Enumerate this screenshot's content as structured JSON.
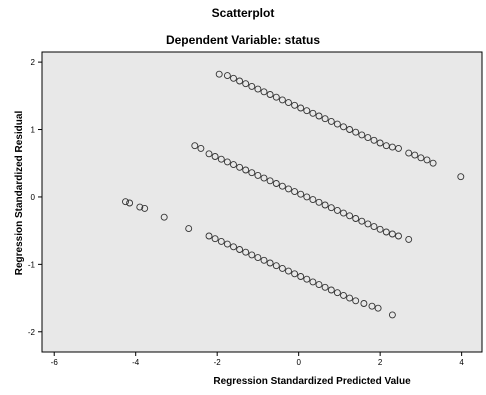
{
  "chart_data": {
    "type": "scatter",
    "title": "Scatterplot",
    "subtitle": "Dependent Variable: status",
    "xlabel": "Regression Standardized Predicted Value",
    "ylabel": "Regression Standardized Residual",
    "xlim": [
      -6.3,
      4.5
    ],
    "ylim": [
      -2.3,
      2.15
    ],
    "xticks": [
      -6,
      -4,
      -2,
      0,
      2,
      4
    ],
    "yticks": [
      2,
      1,
      0,
      -1,
      -2
    ],
    "grid": false,
    "legend": "none",
    "colors": {
      "plot_background": "#e8e8e8",
      "marker_stroke": "#333333",
      "axis": "#000000"
    },
    "series": [
      {
        "points": [
          [
            -1.95,
            1.82
          ],
          [
            -1.75,
            1.8
          ],
          [
            -1.6,
            1.76
          ],
          [
            -1.45,
            1.72
          ],
          [
            -1.3,
            1.68
          ],
          [
            -1.15,
            1.64
          ],
          [
            -1.0,
            1.6
          ],
          [
            -0.85,
            1.56
          ],
          [
            -0.7,
            1.52
          ],
          [
            -0.55,
            1.48
          ],
          [
            -0.4,
            1.44
          ],
          [
            -0.25,
            1.4
          ],
          [
            -0.1,
            1.36
          ],
          [
            0.05,
            1.32
          ],
          [
            0.2,
            1.28
          ],
          [
            0.35,
            1.24
          ],
          [
            0.5,
            1.2
          ],
          [
            0.65,
            1.16
          ],
          [
            0.8,
            1.12
          ],
          [
            0.95,
            1.08
          ],
          [
            1.1,
            1.04
          ],
          [
            1.25,
            1.0
          ],
          [
            1.4,
            0.96
          ],
          [
            1.55,
            0.92
          ],
          [
            1.7,
            0.88
          ],
          [
            1.85,
            0.84
          ],
          [
            2.0,
            0.8
          ],
          [
            2.15,
            0.76
          ],
          [
            2.3,
            0.74
          ],
          [
            2.45,
            0.72
          ],
          [
            2.7,
            0.65
          ],
          [
            2.85,
            0.62
          ],
          [
            3.0,
            0.58
          ],
          [
            3.15,
            0.55
          ],
          [
            3.3,
            0.5
          ],
          [
            3.98,
            0.3
          ],
          [
            -2.55,
            0.76
          ],
          [
            -2.4,
            0.72
          ],
          [
            -2.2,
            0.64
          ],
          [
            -2.05,
            0.6
          ],
          [
            -1.9,
            0.56
          ],
          [
            -1.75,
            0.52
          ],
          [
            -1.6,
            0.48
          ],
          [
            -1.45,
            0.44
          ],
          [
            -1.3,
            0.4
          ],
          [
            -1.15,
            0.36
          ],
          [
            -1.0,
            0.32
          ],
          [
            -0.85,
            0.28
          ],
          [
            -0.7,
            0.24
          ],
          [
            -0.55,
            0.2
          ],
          [
            -0.4,
            0.16
          ],
          [
            -0.25,
            0.12
          ],
          [
            -0.1,
            0.08
          ],
          [
            0.05,
            0.04
          ],
          [
            0.2,
            0.0
          ],
          [
            0.35,
            -0.04
          ],
          [
            0.5,
            -0.08
          ],
          [
            0.65,
            -0.12
          ],
          [
            0.8,
            -0.16
          ],
          [
            0.95,
            -0.2
          ],
          [
            1.1,
            -0.24
          ],
          [
            1.25,
            -0.28
          ],
          [
            1.4,
            -0.32
          ],
          [
            1.55,
            -0.36
          ],
          [
            1.7,
            -0.4
          ],
          [
            1.85,
            -0.44
          ],
          [
            2.0,
            -0.48
          ],
          [
            2.15,
            -0.52
          ],
          [
            2.3,
            -0.55
          ],
          [
            2.45,
            -0.58
          ],
          [
            2.7,
            -0.63
          ],
          [
            -4.25,
            -0.07
          ],
          [
            -4.15,
            -0.09
          ],
          [
            -3.9,
            -0.15
          ],
          [
            -3.78,
            -0.17
          ],
          [
            -3.3,
            -0.3
          ],
          [
            -2.7,
            -0.47
          ],
          [
            -2.2,
            -0.58
          ],
          [
            -2.05,
            -0.62
          ],
          [
            -1.9,
            -0.66
          ],
          [
            -1.75,
            -0.7
          ],
          [
            -1.6,
            -0.74
          ],
          [
            -1.45,
            -0.78
          ],
          [
            -1.3,
            -0.82
          ],
          [
            -1.15,
            -0.86
          ],
          [
            -1.0,
            -0.9
          ],
          [
            -0.85,
            -0.94
          ],
          [
            -0.7,
            -0.98
          ],
          [
            -0.55,
            -1.02
          ],
          [
            -0.4,
            -1.06
          ],
          [
            -0.25,
            -1.1
          ],
          [
            -0.1,
            -1.14
          ],
          [
            0.05,
            -1.18
          ],
          [
            0.2,
            -1.22
          ],
          [
            0.35,
            -1.26
          ],
          [
            0.5,
            -1.3
          ],
          [
            0.65,
            -1.34
          ],
          [
            0.8,
            -1.38
          ],
          [
            0.95,
            -1.42
          ],
          [
            1.1,
            -1.46
          ],
          [
            1.25,
            -1.5
          ],
          [
            1.4,
            -1.54
          ],
          [
            1.6,
            -1.58
          ],
          [
            1.8,
            -1.62
          ],
          [
            1.95,
            -1.65
          ],
          [
            2.3,
            -1.75
          ]
        ]
      }
    ]
  }
}
